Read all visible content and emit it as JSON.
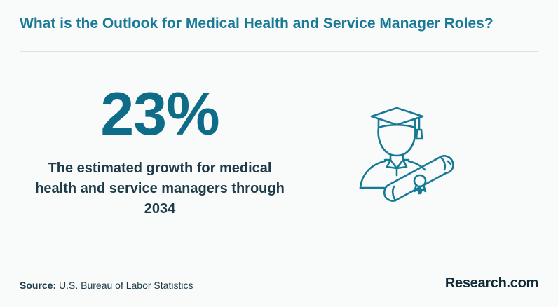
{
  "header": {
    "title": "What is the Outlook for Medical Health and Service Manager Roles?"
  },
  "stat": {
    "value": "23%",
    "description": "The estimated growth for medical health and service managers through 2034"
  },
  "icon": {
    "name": "graduate-with-diploma-icon",
    "color": "#167a96"
  },
  "footer": {
    "source_label": "Source:",
    "source_text": " U.S. Bureau of Labor Statistics",
    "brand": "Research.com"
  },
  "colors": {
    "title": "#1a7a96",
    "stat": "#0e6c88",
    "text": "#1d3a48",
    "background": "#f9fafa"
  }
}
